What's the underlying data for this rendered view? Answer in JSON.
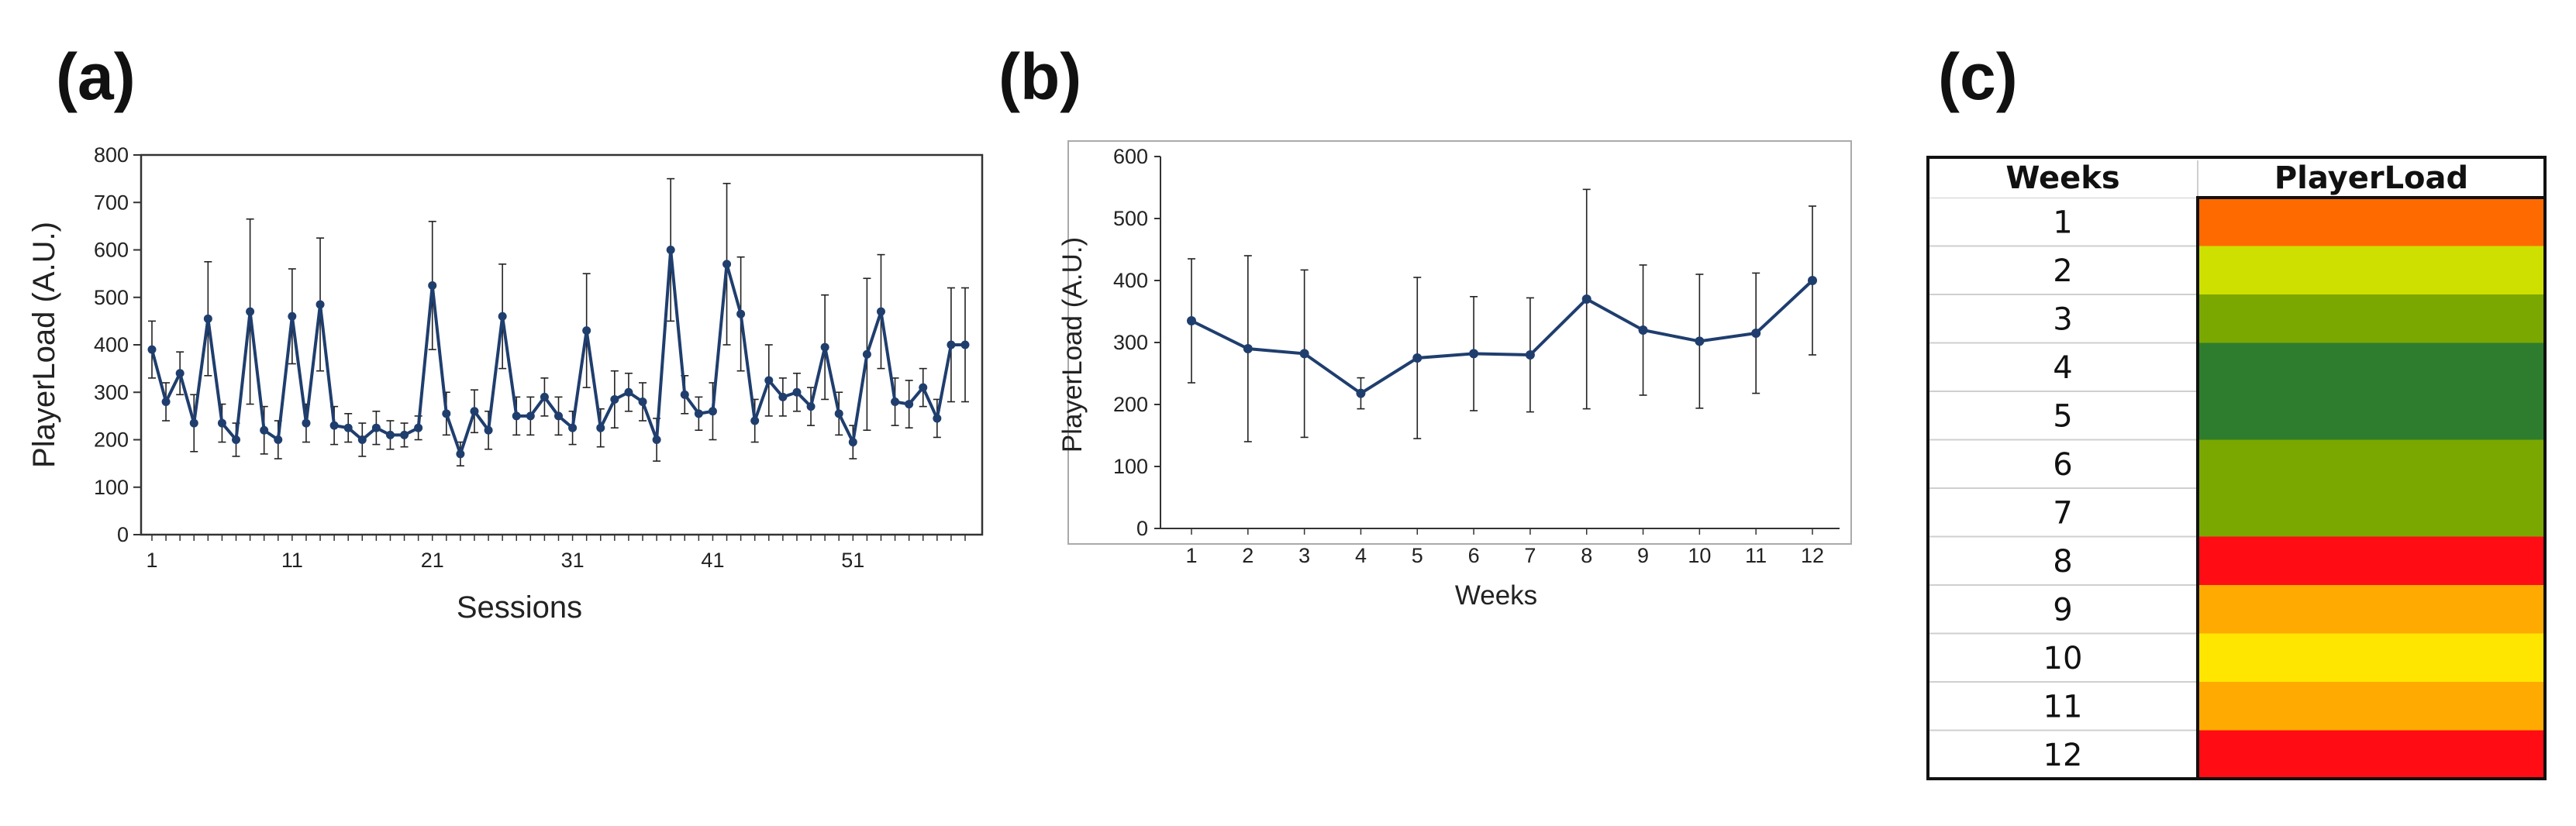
{
  "panels": {
    "a": {
      "letter": "(a)"
    },
    "b": {
      "letter": "(b)"
    },
    "c": {
      "letter": "(c)"
    }
  },
  "colors": {
    "line": "#1f3e6e",
    "error": "#222222"
  },
  "chart_data": [
    {
      "type": "line",
      "panel": "(a)",
      "xlabel": "Sessions",
      "ylabel": "PlayerLoad (A.U.)",
      "xlim": [
        1,
        59
      ],
      "ylim": [
        0,
        800
      ],
      "yticks": [
        0,
        100,
        200,
        300,
        400,
        500,
        600,
        700,
        800
      ],
      "xtick_labels": [
        "1",
        "11",
        "21",
        "31",
        "41",
        "51"
      ],
      "xtick_values": [
        1,
        11,
        21,
        31,
        41,
        51
      ],
      "grid": false,
      "error_bars": true,
      "x": [
        1,
        2,
        3,
        4,
        5,
        6,
        7,
        8,
        9,
        10,
        11,
        12,
        13,
        14,
        15,
        16,
        17,
        18,
        19,
        20,
        21,
        22,
        23,
        24,
        25,
        26,
        27,
        28,
        29,
        30,
        31,
        32,
        33,
        34,
        35,
        36,
        37,
        38,
        39,
        40,
        41,
        42,
        43,
        44,
        45,
        46,
        47,
        48,
        49,
        50,
        51,
        52,
        53,
        54,
        55,
        56,
        57,
        58,
        59
      ],
      "y": [
        390,
        280,
        340,
        235,
        455,
        235,
        200,
        470,
        220,
        200,
        460,
        235,
        485,
        230,
        225,
        200,
        225,
        210,
        210,
        225,
        525,
        255,
        170,
        260,
        220,
        460,
        250,
        250,
        290,
        250,
        225,
        430,
        225,
        285,
        300,
        280,
        200,
        600,
        295,
        255,
        260,
        570,
        465,
        240,
        325,
        290,
        300,
        270,
        395,
        255,
        195,
        380,
        470,
        280,
        275,
        310,
        245,
        400,
        400
      ],
      "err": [
        60,
        40,
        45,
        60,
        120,
        40,
        35,
        195,
        50,
        40,
        100,
        40,
        140,
        40,
        30,
        35,
        35,
        30,
        25,
        25,
        135,
        45,
        25,
        45,
        40,
        110,
        40,
        40,
        40,
        40,
        35,
        120,
        40,
        60,
        40,
        40,
        45,
        150,
        40,
        35,
        60,
        170,
        120,
        45,
        75,
        40,
        40,
        40,
        110,
        45,
        35,
        160,
        120,
        50,
        50,
        40,
        40,
        120,
        120
      ]
    },
    {
      "type": "line",
      "panel": "(b)",
      "xlabel": "Weeks",
      "ylabel": "PlayerLoad (A.U.)",
      "xlim": [
        1,
        12
      ],
      "ylim": [
        0,
        600
      ],
      "yticks": [
        0,
        100,
        200,
        300,
        400,
        500,
        600
      ],
      "categories": [
        "1",
        "2",
        "3",
        "4",
        "5",
        "6",
        "7",
        "8",
        "9",
        "10",
        "11",
        "12"
      ],
      "values": [
        335,
        290,
        282,
        218,
        275,
        282,
        280,
        370,
        320,
        302,
        315,
        400
      ],
      "err": [
        100,
        150,
        135,
        25,
        130,
        92,
        92,
        177,
        105,
        108,
        97,
        120
      ],
      "grid": false,
      "error_bars": true
    },
    {
      "type": "heatmap",
      "panel": "(c)",
      "columns": [
        "Weeks",
        "PlayerLoad"
      ],
      "rows": [
        "1",
        "2",
        "3",
        "4",
        "5",
        "6",
        "7",
        "8",
        "9",
        "10",
        "11",
        "12"
      ],
      "cell_colors": [
        "#ff6a00",
        "#cde000",
        "#7aa800",
        "#2e7d2e",
        "#2e7d2e",
        "#7aa800",
        "#7aa800",
        "#ff0c14",
        "#ffaa00",
        "#ffe600",
        "#ffaa00",
        "#ff0c14"
      ]
    }
  ]
}
